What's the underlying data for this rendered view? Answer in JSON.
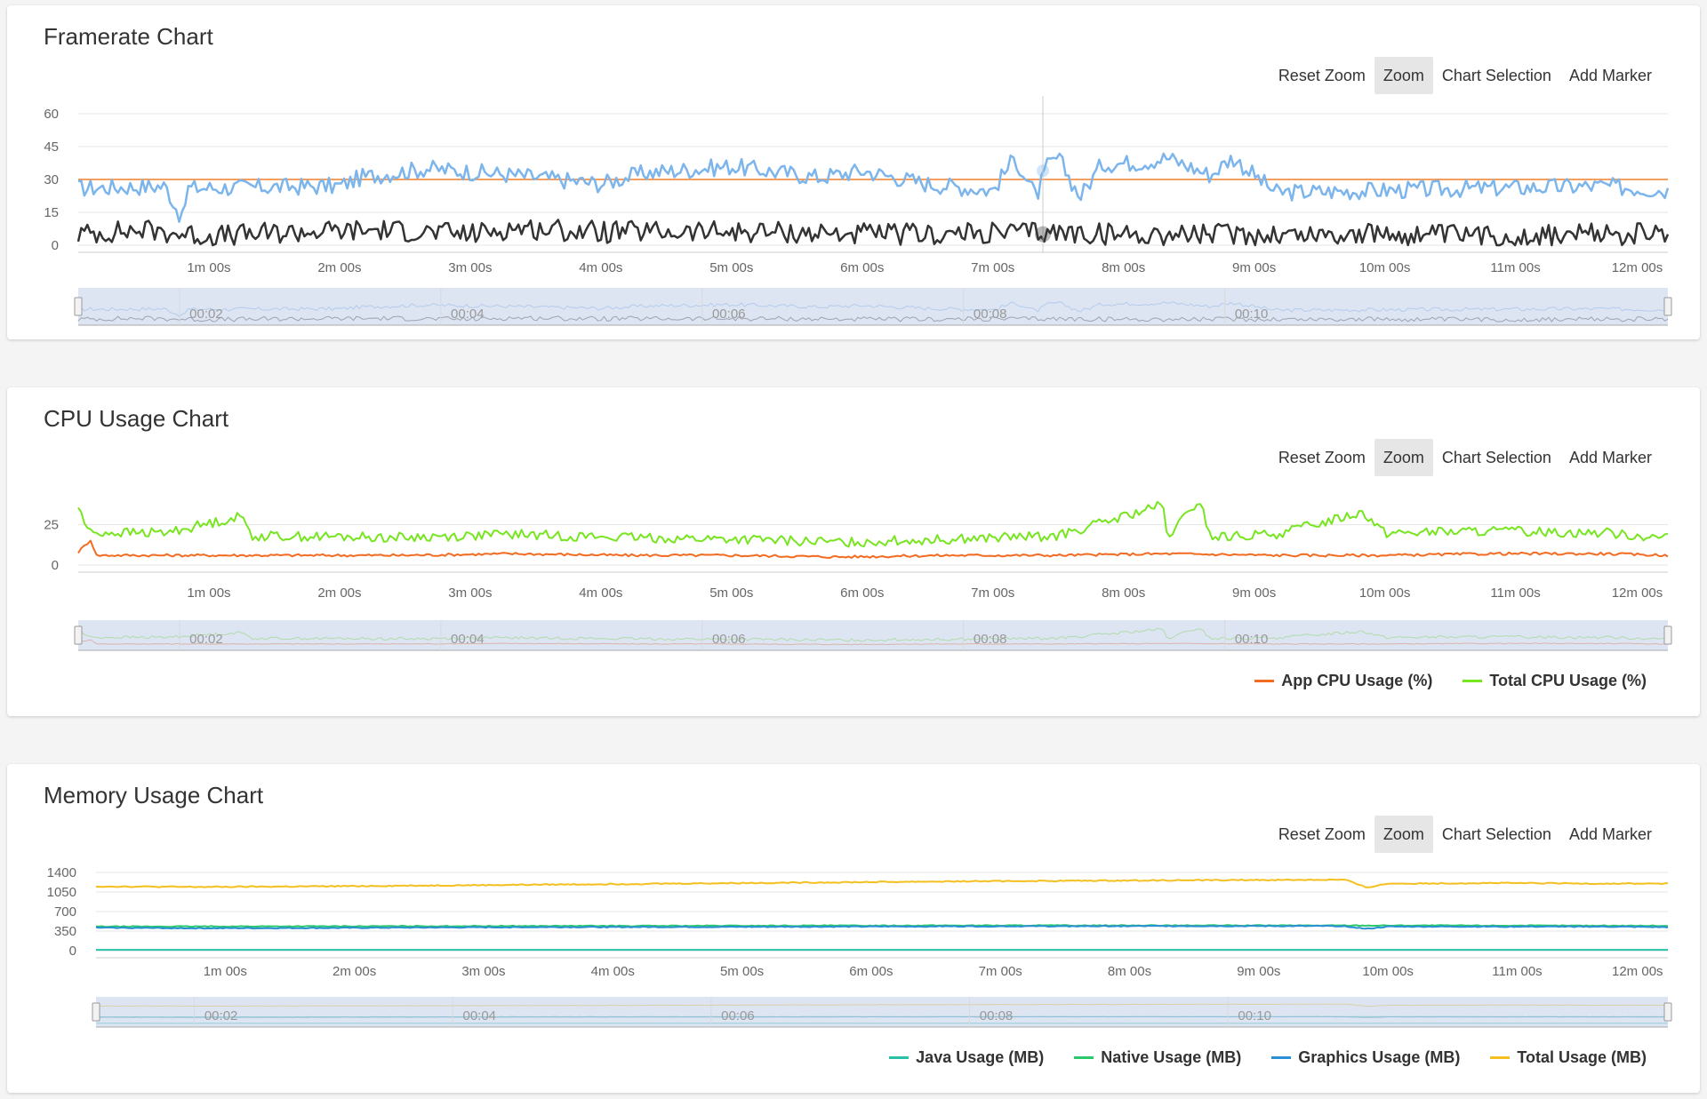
{
  "toolbar": {
    "reset_zoom": "Reset Zoom",
    "zoom": "Zoom",
    "chart_selection": "Chart Selection",
    "add_marker": "Add Marker"
  },
  "icons": {
    "crosshair": "crosshair-marker-icon",
    "nav_handle": "navigator-handle-icon"
  },
  "colors": {
    "fps_line": "#7cb5ec",
    "frametime_line": "#333333",
    "target_line": "#f07f2a",
    "app_cpu": "#f26b21",
    "total_cpu": "#77e51f",
    "java": "#27c1a8",
    "native": "#29c96b",
    "graphics": "#2a8fd4",
    "total_mem": "#f4c020",
    "navigator_fill": "#c7d2ea"
  },
  "navigator_labels": [
    "00:02",
    "00:04",
    "00:06",
    "00:08",
    "00:10"
  ],
  "x_ticks": [
    "1m 00s",
    "2m 00s",
    "3m 00s",
    "4m 00s",
    "5m 00s",
    "6m 00s",
    "7m 00s",
    "8m 00s",
    "9m 00s",
    "10m 00s",
    "11m 00s",
    "12m 00s"
  ],
  "charts": [
    {
      "id": "framerate",
      "title": "Framerate Chart",
      "legend": []
    },
    {
      "id": "cpu",
      "title": "CPU Usage Chart",
      "legend": [
        {
          "name": "App CPU Usage (%)",
          "color": "#f26b21"
        },
        {
          "name": "Total CPU Usage (%)",
          "color": "#77e51f"
        }
      ]
    },
    {
      "id": "memory",
      "title": "Memory Usage Chart",
      "legend": [
        {
          "name": "Java Usage (MB)",
          "color": "#27c1a8"
        },
        {
          "name": "Native Usage (MB)",
          "color": "#29c96b"
        },
        {
          "name": "Graphics Usage (MB)",
          "color": "#2a8fd4"
        },
        {
          "name": "Total Usage (MB)",
          "color": "#f4c020"
        }
      ]
    }
  ],
  "chart_data": [
    {
      "type": "line",
      "title": "Framerate Chart",
      "xlabel": "",
      "ylabel": "",
      "x_unit": "seconds",
      "x_range": [
        0,
        730
      ],
      "y_ticks": [
        0,
        15,
        30,
        45,
        60
      ],
      "ylim": [
        0,
        60
      ],
      "grid": true,
      "plot_lines": [
        {
          "value": 30,
          "color": "#f07f2a"
        }
      ],
      "crosshair_x": 443,
      "series": [
        {
          "color": "#7cb5ec",
          "points": [
            [
              0,
              26
            ],
            [
              40,
              27
            ],
            [
              48,
              11
            ],
            [
              50,
              26
            ],
            [
              120,
              27
            ],
            [
              130,
              31
            ],
            [
              160,
              35
            ],
            [
              200,
              32
            ],
            [
              240,
              28
            ],
            [
              260,
              33
            ],
            [
              300,
              36
            ],
            [
              340,
              31
            ],
            [
              360,
              34
            ],
            [
              390,
              28
            ],
            [
              420,
              25
            ],
            [
              430,
              40
            ],
            [
              440,
              22
            ],
            [
              445,
              36
            ],
            [
              450,
              40
            ],
            [
              460,
              22
            ],
            [
              470,
              37
            ],
            [
              490,
              38
            ],
            [
              500,
              40
            ],
            [
              520,
              32
            ],
            [
              530,
              40
            ],
            [
              550,
              24
            ],
            [
              600,
              25
            ],
            [
              650,
              26
            ],
            [
              700,
              27
            ],
            [
              730,
              25
            ]
          ]
        },
        {
          "color": "#333333",
          "points": [
            [
              0,
              5
            ],
            [
              30,
              7
            ],
            [
              60,
              4
            ],
            [
              100,
              6
            ],
            [
              140,
              7
            ],
            [
              180,
              5
            ],
            [
              200,
              8
            ],
            [
              240,
              6
            ],
            [
              280,
              6
            ],
            [
              320,
              6
            ],
            [
              360,
              5
            ],
            [
              400,
              5
            ],
            [
              440,
              6
            ],
            [
              480,
              5
            ],
            [
              520,
              5
            ],
            [
              560,
              5
            ],
            [
              600,
              5
            ],
            [
              650,
              4
            ],
            [
              700,
              5
            ],
            [
              730,
              5
            ]
          ]
        }
      ]
    },
    {
      "type": "line",
      "title": "CPU Usage Chart",
      "xlabel": "",
      "ylabel": "",
      "x_unit": "seconds",
      "x_range": [
        0,
        730
      ],
      "y_ticks": [
        0,
        25
      ],
      "ylim": [
        0,
        45
      ],
      "grid": true,
      "legend_position": "bottom-right",
      "series": [
        {
          "name": "App CPU Usage (%)",
          "color": "#f26b21",
          "points": [
            [
              0,
              8
            ],
            [
              6,
              16
            ],
            [
              8,
              6
            ],
            [
              40,
              6
            ],
            [
              100,
              6
            ],
            [
              150,
              6
            ],
            [
              200,
              7
            ],
            [
              250,
              6
            ],
            [
              300,
              6
            ],
            [
              350,
              5
            ],
            [
              400,
              6
            ],
            [
              450,
              6
            ],
            [
              500,
              7
            ],
            [
              550,
              6
            ],
            [
              600,
              6
            ],
            [
              650,
              7
            ],
            [
              700,
              7
            ],
            [
              730,
              6
            ]
          ]
        },
        {
          "name": "Total CPU Usage (%)",
          "color": "#77e51f",
          "points": [
            [
              0,
              36
            ],
            [
              5,
              20
            ],
            [
              40,
              20
            ],
            [
              75,
              30
            ],
            [
              80,
              18
            ],
            [
              150,
              17
            ],
            [
              200,
              19
            ],
            [
              250,
              17
            ],
            [
              300,
              16
            ],
            [
              350,
              14
            ],
            [
              400,
              16
            ],
            [
              450,
              18
            ],
            [
              498,
              37
            ],
            [
              500,
              17
            ],
            [
              515,
              40
            ],
            [
              520,
              17
            ],
            [
              550,
              19
            ],
            [
              590,
              33
            ],
            [
              600,
              20
            ],
            [
              650,
              21
            ],
            [
              700,
              20
            ],
            [
              730,
              17
            ]
          ]
        }
      ]
    },
    {
      "type": "line",
      "title": "Memory Usage Chart",
      "xlabel": "",
      "ylabel": "",
      "x_unit": "seconds",
      "x_range": [
        0,
        730
      ],
      "y_ticks": [
        0,
        350,
        700,
        1050,
        1400
      ],
      "ylim": [
        0,
        1400
      ],
      "grid": true,
      "legend_position": "bottom-right",
      "series": [
        {
          "name": "Java Usage (MB)",
          "color": "#27c1a8",
          "points": [
            [
              0,
              15
            ],
            [
              730,
              15
            ]
          ]
        },
        {
          "name": "Native Usage (MB)",
          "color": "#29c96b",
          "points": [
            [
              0,
              430
            ],
            [
              200,
              440
            ],
            [
              400,
              450
            ],
            [
              600,
              450
            ],
            [
              730,
              445
            ]
          ]
        },
        {
          "name": "Graphics Usage (MB)",
          "color": "#2a8fd4",
          "points": [
            [
              0,
              410
            ],
            [
              50,
              400
            ],
            [
              100,
              405
            ],
            [
              200,
              420
            ],
            [
              300,
              425
            ],
            [
              400,
              435
            ],
            [
              500,
              440
            ],
            [
              580,
              440
            ],
            [
              590,
              390
            ],
            [
              600,
              430
            ],
            [
              700,
              430
            ],
            [
              730,
              420
            ]
          ]
        },
        {
          "name": "Total Usage (MB)",
          "color": "#f4c020",
          "points": [
            [
              0,
              1150
            ],
            [
              50,
              1140
            ],
            [
              100,
              1150
            ],
            [
              200,
              1180
            ],
            [
              300,
              1210
            ],
            [
              400,
              1240
            ],
            [
              500,
              1260
            ],
            [
              580,
              1270
            ],
            [
              590,
              1130
            ],
            [
              600,
              1200
            ],
            [
              650,
              1210
            ],
            [
              700,
              1200
            ],
            [
              730,
              1200
            ]
          ]
        }
      ]
    }
  ]
}
